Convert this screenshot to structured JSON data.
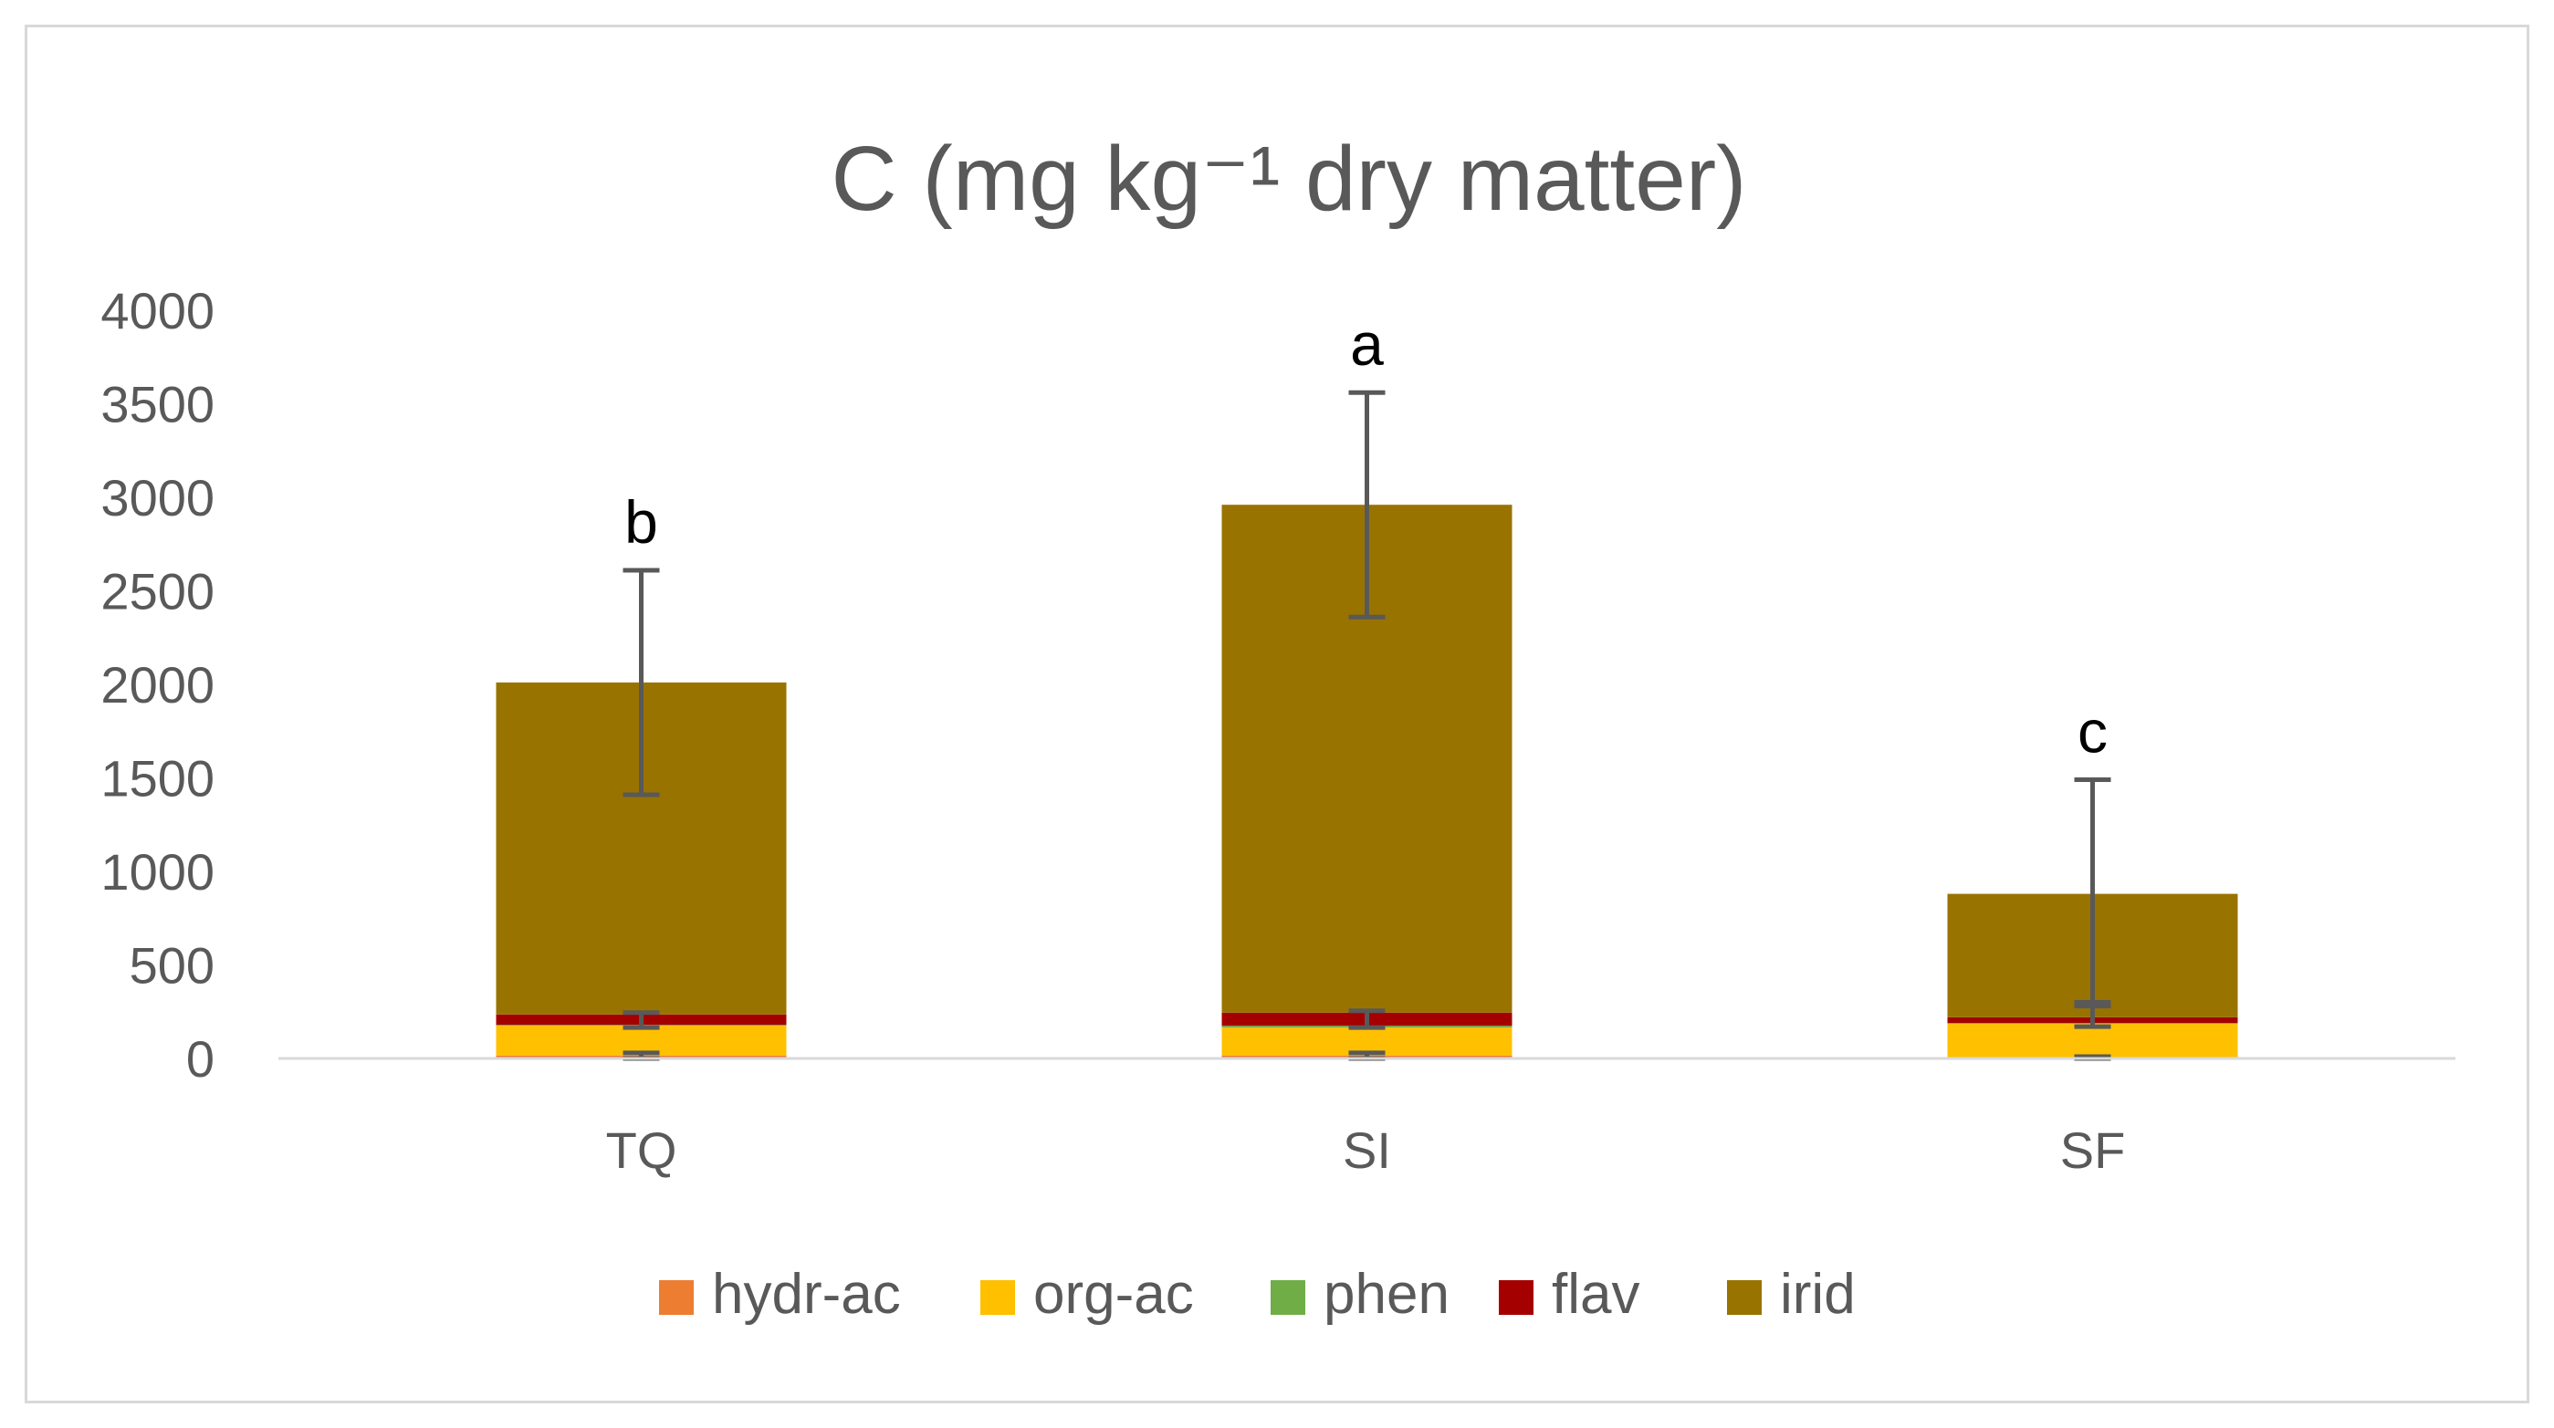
{
  "chart_data": {
    "type": "bar",
    "stacked": true,
    "title": "C (mg kg⁻¹ dry matter)",
    "xlabel": "",
    "ylabel": "",
    "ylim": [
      0,
      4000
    ],
    "yticks": [
      0,
      500,
      1000,
      1500,
      2000,
      2500,
      3000,
      3500,
      4000
    ],
    "grid": false,
    "legend_position": "bottom",
    "categories": [
      "TQ",
      "SI",
      "SF"
    ],
    "series": [
      {
        "name": "hydr-ac",
        "color": "#ED7D31",
        "values": [
          15,
          15,
          5
        ]
      },
      {
        "name": "org-ac",
        "color": "#FFC000",
        "values": [
          160,
          150,
          180
        ]
      },
      {
        "name": "phen",
        "color": "#70AD47",
        "values": [
          5,
          10,
          5
        ]
      },
      {
        "name": "flav",
        "color": "#A50000",
        "values": [
          55,
          70,
          30
        ]
      },
      {
        "name": "irid",
        "color": "#997300",
        "values": [
          1775,
          2715,
          660
        ]
      }
    ],
    "error_bars": [
      {
        "category": "TQ",
        "series": "irid",
        "low": 1410,
        "high": 2610
      },
      {
        "category": "SI",
        "series": "irid",
        "low": 2360,
        "high": 3560
      },
      {
        "category": "SF",
        "series": "irid",
        "low": 300,
        "high": 1490
      },
      {
        "category": "TQ",
        "series": "flav",
        "low": 165,
        "high": 245
      },
      {
        "category": "SI",
        "series": "flav",
        "low": 165,
        "high": 255
      },
      {
        "category": "SF",
        "series": "flav",
        "low": 170,
        "high": 280
      },
      {
        "category": "TQ",
        "series": "hydr-ac",
        "low": 0,
        "high": 30
      },
      {
        "category": "SI",
        "series": "hydr-ac",
        "low": 0,
        "high": 30
      },
      {
        "category": "SF",
        "series": "hydr-ac",
        "low": 0,
        "high": 10
      }
    ],
    "annotations": [
      {
        "category": "TQ",
        "text": "b"
      },
      {
        "category": "SI",
        "text": "a"
      },
      {
        "category": "SF",
        "text": "c"
      }
    ]
  }
}
